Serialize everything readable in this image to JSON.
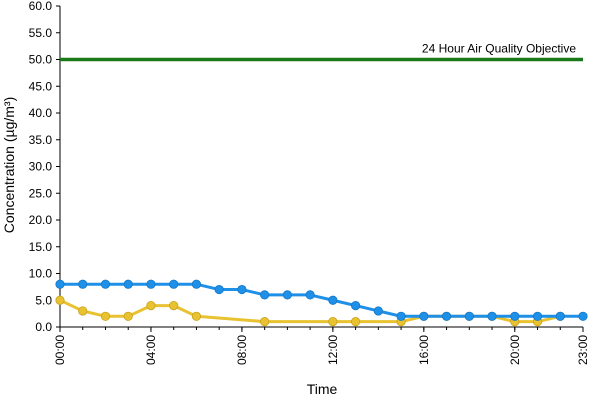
{
  "chart_data": {
    "type": "line",
    "xlabel": "Time",
    "ylabel": "Concentration (µg/m³)",
    "ylim": [
      0,
      60
    ],
    "yticks": [
      "0.0",
      "5.0",
      "10.0",
      "15.0",
      "20.0",
      "25.0",
      "30.0",
      "35.0",
      "40.0",
      "45.0",
      "50.0",
      "55.0",
      "60.0"
    ],
    "xlim": [
      0,
      23
    ],
    "xticks": [
      {
        "hour": 0,
        "label": "00:00"
      },
      {
        "hour": 4,
        "label": "04:00"
      },
      {
        "hour": 8,
        "label": "08:00"
      },
      {
        "hour": 12,
        "label": "12:00"
      },
      {
        "hour": 16,
        "label": "16:00"
      },
      {
        "hour": 20,
        "label": "20:00"
      },
      {
        "hour": 23,
        "label": "23:00"
      }
    ],
    "grid": false,
    "objective": {
      "value": 50,
      "label": "24 Hour Air Quality Objective",
      "color": "#1a7a1a"
    },
    "series": [
      {
        "color": "#1e90e8",
        "hours": [
          0,
          1,
          2,
          3,
          4,
          5,
          6,
          7,
          8,
          9,
          10,
          11,
          12,
          13,
          14,
          15,
          16,
          17,
          18,
          19,
          20,
          21,
          22,
          23
        ],
        "values": [
          8,
          8,
          8,
          8,
          8,
          8,
          8,
          7,
          7,
          6,
          6,
          6,
          5,
          4,
          3,
          2,
          2,
          2,
          2,
          2,
          2,
          2,
          2,
          2
        ]
      },
      {
        "color": "#e8c230",
        "hours": [
          0,
          1,
          2,
          3,
          4,
          5,
          6,
          9,
          12,
          13,
          15,
          16,
          17,
          18,
          19,
          20,
          21,
          22
        ],
        "values": [
          5,
          3,
          2,
          2,
          4,
          4,
          2,
          1,
          1,
          1,
          1,
          2,
          2,
          2,
          2,
          1,
          1,
          2
        ]
      }
    ]
  }
}
